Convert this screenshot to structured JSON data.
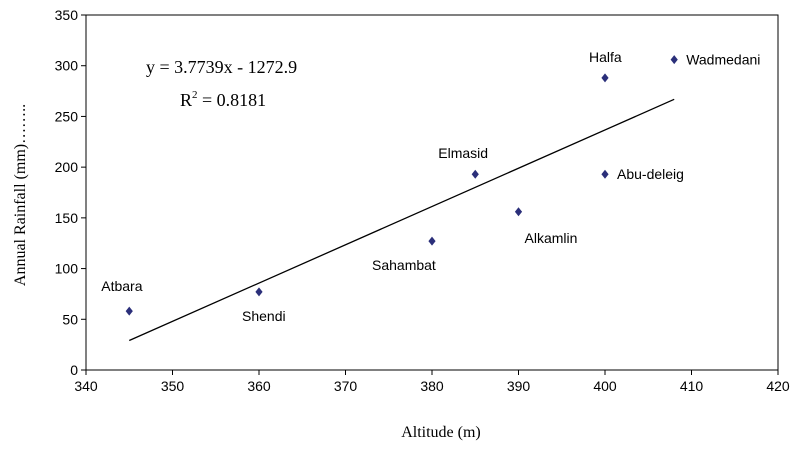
{
  "chart_data": {
    "type": "scatter",
    "xlabel": "Altitude  (m)",
    "ylabel": "Annual Rainfall (mm)……..",
    "xlim": [
      340,
      420
    ],
    "ylim": [
      0,
      350
    ],
    "x_ticks": [
      340,
      350,
      360,
      370,
      380,
      390,
      400,
      410,
      420
    ],
    "y_ticks": [
      0,
      50,
      100,
      150,
      200,
      250,
      300,
      350
    ],
    "grid": false,
    "legend": "none",
    "marker_color": "#2b2f7a",
    "points": [
      {
        "label": "Atbara",
        "x": 345,
        "y": 58
      },
      {
        "label": "Shendi",
        "x": 360,
        "y": 77
      },
      {
        "label": "Sahambat",
        "x": 380,
        "y": 127
      },
      {
        "label": "Elmasid",
        "x": 385,
        "y": 193
      },
      {
        "label": "Alkamlin",
        "x": 390,
        "y": 156
      },
      {
        "label": "Abu-deleig",
        "x": 400,
        "y": 193
      },
      {
        "label": "Halfa",
        "x": 400,
        "y": 288
      },
      {
        "label": "Wadmedani",
        "x": 408,
        "y": 306
      }
    ],
    "trendline": {
      "type": "linear",
      "slope": 3.7739,
      "intercept": -1272.9,
      "x_range": [
        345,
        408
      ],
      "equation_label": "y = 3.7739x - 1272.9",
      "r2_prefix": "R",
      "r2_exponent": "2",
      "r2_value": " = 0.8181"
    }
  }
}
